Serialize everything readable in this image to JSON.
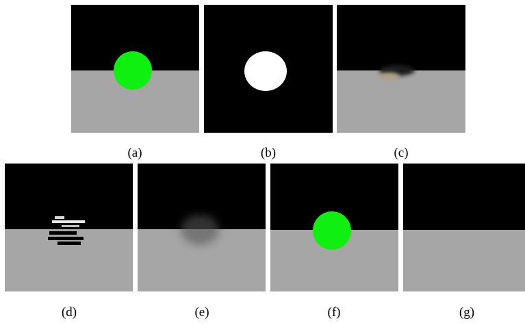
{
  "figure": {
    "captions": [
      "(a)",
      "(b)",
      "(c)",
      "(d)",
      "(e)",
      "(f)",
      "(g)"
    ]
  }
}
